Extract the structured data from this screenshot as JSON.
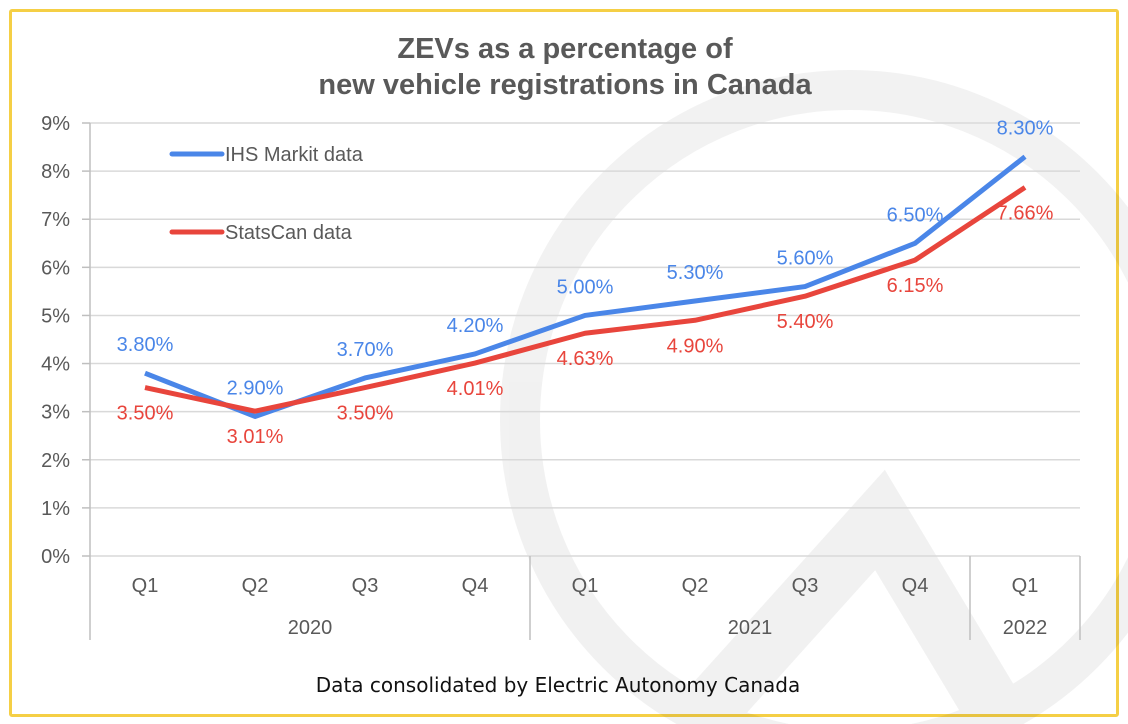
{
  "chart_data": {
    "type": "line",
    "title": [
      "ZEVs as a percentage of",
      "new vehicle registrations in Canada"
    ],
    "categories": [
      "Q1",
      "Q2",
      "Q3",
      "Q4",
      "Q1",
      "Q2",
      "Q3",
      "Q4",
      "Q1"
    ],
    "groups": [
      {
        "label": "2020",
        "count": 4
      },
      {
        "label": "2021",
        "count": 4
      },
      {
        "label": "2022",
        "count": 1
      }
    ],
    "series": [
      {
        "name": "IHS Markit data",
        "color": "#4a86e8",
        "values": [
          3.8,
          2.9,
          3.7,
          4.2,
          5.0,
          5.3,
          5.6,
          6.5,
          8.3
        ],
        "labels": [
          "3.80%",
          "2.90%",
          "3.70%",
          "4.20%",
          "5.00%",
          "5.30%",
          "5.60%",
          "6.50%",
          "8.30%"
        ]
      },
      {
        "name": "StatsCan data",
        "color": "#e8453c",
        "values": [
          3.5,
          3.01,
          3.5,
          4.01,
          4.63,
          4.9,
          5.4,
          6.15,
          7.66
        ],
        "labels": [
          "3.50%",
          "3.01%",
          "3.50%",
          "4.01%",
          "4.63%",
          "4.90%",
          "5.40%",
          "6.15%",
          "7.66%"
        ]
      }
    ],
    "yticks": [
      "0%",
      "1%",
      "2%",
      "3%",
      "4%",
      "5%",
      "6%",
      "7%",
      "8%",
      "9%"
    ],
    "ylim": [
      0,
      9
    ],
    "grid": true,
    "legend": "top-left",
    "border_color": "#f5cf45"
  },
  "footer": "Data consolidated by Electric Autonomy Canada"
}
